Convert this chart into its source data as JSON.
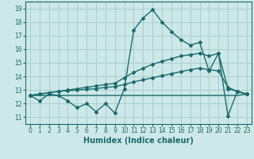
{
  "xlabel": "Humidex (Indice chaleur)",
  "ylabel": "",
  "xlim": [
    -0.5,
    23.5
  ],
  "ylim": [
    10.5,
    19.5
  ],
  "yticks": [
    11,
    12,
    13,
    14,
    15,
    16,
    17,
    18,
    19
  ],
  "xticks": [
    0,
    1,
    2,
    3,
    4,
    5,
    6,
    7,
    8,
    9,
    10,
    11,
    12,
    13,
    14,
    15,
    16,
    17,
    18,
    19,
    20,
    21,
    22,
    23
  ],
  "background_color": "#cde8e8",
  "grid_color": "#aacece",
  "line_color": "#1a6b6b",
  "line1_y": [
    12.6,
    12.2,
    12.7,
    12.6,
    12.2,
    11.7,
    12.0,
    11.4,
    12.0,
    11.3,
    13.1,
    17.4,
    18.3,
    18.9,
    18.0,
    17.3,
    16.7,
    16.3,
    16.5,
    14.4,
    15.7,
    11.1,
    12.9,
    12.7
  ],
  "line2_y": [
    12.6,
    12.6,
    12.6,
    12.6,
    12.6,
    12.6,
    12.6,
    12.6,
    12.6,
    12.6,
    12.6,
    12.6,
    12.6,
    12.6,
    12.6,
    12.6,
    12.6,
    12.6,
    12.6,
    12.6,
    12.6,
    12.6,
    12.6,
    12.7
  ],
  "line3_y": [
    12.6,
    12.7,
    12.8,
    12.9,
    12.95,
    13.0,
    13.05,
    13.1,
    13.2,
    13.25,
    13.4,
    13.6,
    13.75,
    13.9,
    14.05,
    14.2,
    14.35,
    14.5,
    14.6,
    14.5,
    14.4,
    13.2,
    12.9,
    12.7
  ],
  "line4_y": [
    12.6,
    12.7,
    12.8,
    12.9,
    13.0,
    13.1,
    13.2,
    13.3,
    13.4,
    13.5,
    13.9,
    14.3,
    14.6,
    14.9,
    15.1,
    15.3,
    15.5,
    15.6,
    15.7,
    15.5,
    15.7,
    13.1,
    12.9,
    12.7
  ],
  "marker": "D",
  "markersize": 2.0,
  "linewidth": 1.0
}
